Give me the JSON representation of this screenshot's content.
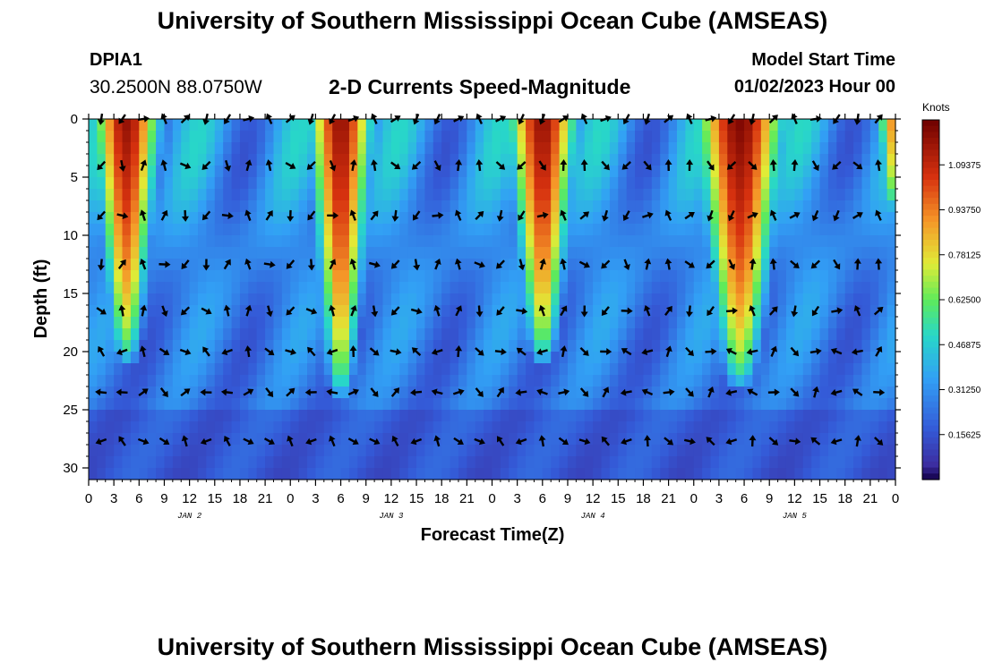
{
  "header": {
    "title": "University of Southern Mississippi Ocean Cube (AMSEAS)",
    "station_id": "DPIA1",
    "coordinates": "30.2500N  88.0750W",
    "subtitle": "2-D Currents Speed-Magnitude",
    "model_start_label": "Model Start Time",
    "model_start_value": "01/02/2023 Hour 00"
  },
  "footer": {
    "title": "University of Southern Mississippi Ocean Cube (AMSEAS)"
  },
  "chart_data": {
    "type": "heatmap",
    "title": "2-D Currents Speed-Magnitude",
    "xlabel": "Forecast Time(Z)",
    "ylabel": "Depth (ft)",
    "x_unit": "hours since 01/02/2023 00Z",
    "xlim": [
      0,
      96
    ],
    "ylim": [
      0,
      31
    ],
    "y_inverted": true,
    "x_tick_values": [
      0,
      3,
      6,
      9,
      12,
      15,
      18,
      21,
      24,
      27,
      30,
      33,
      36,
      39,
      42,
      45,
      48,
      51,
      54,
      57,
      60,
      63,
      66,
      69,
      72,
      75,
      78,
      81,
      84,
      87,
      90,
      93,
      96
    ],
    "x_tick_labels": [
      "0",
      "3",
      "6",
      "9",
      "12",
      "15",
      "18",
      "21",
      "0",
      "3",
      "6",
      "9",
      "12",
      "15",
      "18",
      "21",
      "0",
      "3",
      "6",
      "9",
      "12",
      "15",
      "18",
      "21",
      "0",
      "3",
      "6",
      "9",
      "12",
      "15",
      "18",
      "21",
      "0"
    ],
    "date_labels": [
      {
        "hour": 12,
        "text": "JAN 2"
      },
      {
        "hour": 36,
        "text": "JAN 3"
      },
      {
        "hour": 60,
        "text": "JAN 4"
      },
      {
        "hour": 84,
        "text": "JAN 5"
      }
    ],
    "y_tick_values": [
      0,
      5,
      10,
      15,
      20,
      25,
      30
    ],
    "y_tick_labels": [
      "0",
      "5",
      "10",
      "15",
      "20",
      "25",
      "30"
    ],
    "colorbar": {
      "unit": "Knots",
      "min": 0,
      "max": 1.25,
      "tick_values": [
        0.15625,
        0.3125,
        0.46875,
        0.625,
        0.78125,
        0.9375,
        1.09375
      ],
      "tick_labels": [
        "0.15625",
        "0.31250",
        "0.46875",
        "0.62500",
        "0.78125",
        "0.93750",
        "1.09375"
      ]
    },
    "speed_maxima": [
      {
        "center_hour": 4.5,
        "surface_width_h": 4.6,
        "depth_reach_ft": 21,
        "peak_knots": 1.18
      },
      {
        "center_hour": 30.0,
        "surface_width_h": 4.4,
        "depth_reach_ft": 24,
        "peak_knots": 1.18
      },
      {
        "center_hour": 54.0,
        "surface_width_h": 4.8,
        "depth_reach_ft": 21,
        "peak_knots": 1.18
      },
      {
        "center_hour": 77.5,
        "surface_width_h": 6.2,
        "depth_reach_ft": 23,
        "peak_knots": 1.22
      },
      {
        "center_hour": 95.5,
        "surface_width_h": 1.6,
        "depth_reach_ft": 8,
        "peak_knots": 0.9
      }
    ],
    "vector_depths_ft": [
      0,
      4,
      8.3,
      12.5,
      16.5,
      20,
      23.5,
      27.7
    ],
    "vector_times_h": [
      1.5,
      4,
      6.5,
      9,
      11.5,
      14,
      16.5,
      19,
      21.5,
      24,
      26.5,
      29,
      31.5,
      34,
      36.5,
      39,
      41.5,
      44,
      46.5,
      49,
      51.5,
      54,
      56.5,
      59,
      61.5,
      64,
      66.5,
      69,
      71.5,
      74,
      76.5,
      79,
      81.5,
      84,
      86.5,
      89,
      91.5,
      94
    ]
  }
}
